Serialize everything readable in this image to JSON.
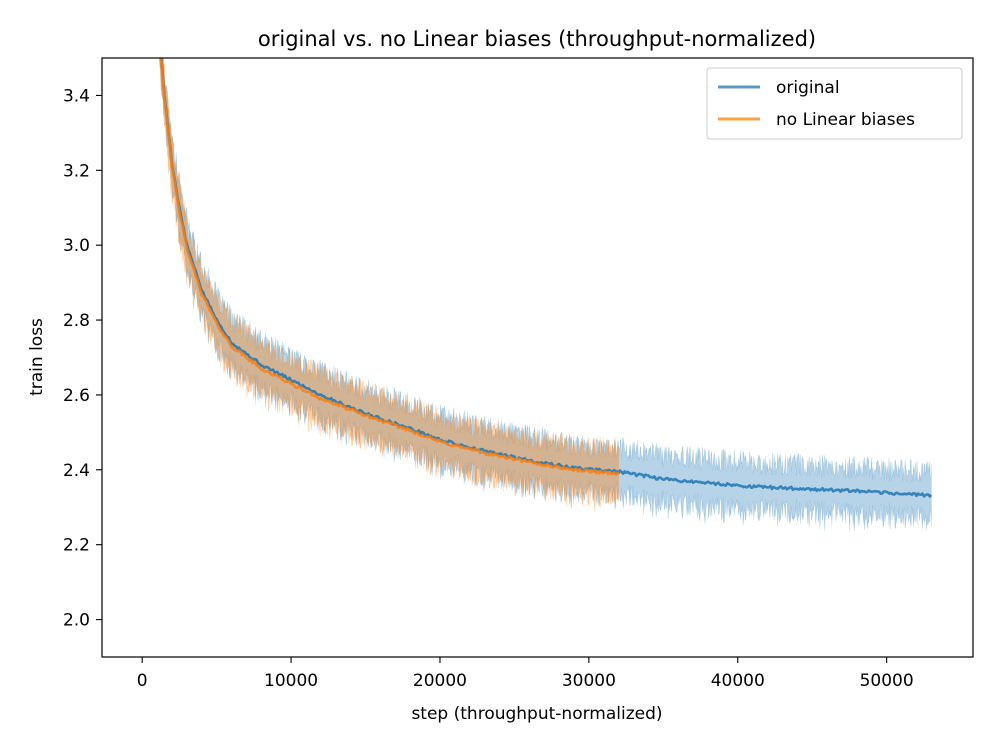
{
  "chart_data": {
    "type": "line",
    "title": "original vs. no Linear biases (throughput-normalized)",
    "xlabel": "step (throughput-normalized)",
    "ylabel": "train loss",
    "xlim": [
      -2700,
      55800
    ],
    "ylim": [
      1.9,
      3.5
    ],
    "x_ticks": [
      0,
      10000,
      20000,
      30000,
      40000,
      50000
    ],
    "y_ticks": [
      2.0,
      2.2,
      2.4,
      2.6,
      2.8,
      3.0,
      3.2,
      3.4
    ],
    "x_tick_labels": [
      "0",
      "10000",
      "20000",
      "30000",
      "40000",
      "50000"
    ],
    "y_tick_labels": [
      "2.0",
      "2.2",
      "2.4",
      "2.6",
      "2.8",
      "3.0",
      "3.2",
      "3.4"
    ],
    "legend_position": "top-right",
    "grid": false,
    "series": [
      {
        "name": "original",
        "color": "#1f77b4",
        "x": [
          1000,
          1500,
          2000,
          2500,
          3000,
          4000,
          5000,
          6000,
          8000,
          10000,
          12000,
          15000,
          18000,
          20000,
          23000,
          26000,
          29000,
          32000,
          35000,
          38000,
          41000,
          44000,
          47000,
          50000,
          53000
        ],
        "y": [
          3.62,
          3.4,
          3.22,
          3.1,
          3.0,
          2.88,
          2.8,
          2.74,
          2.68,
          2.64,
          2.6,
          2.55,
          2.51,
          2.48,
          2.45,
          2.425,
          2.405,
          2.395,
          2.375,
          2.365,
          2.355,
          2.35,
          2.345,
          2.338,
          2.332
        ],
        "band_halfwidth": 0.07
      },
      {
        "name": "no Linear biases",
        "color": "#ff7f0e",
        "x": [
          1000,
          1500,
          2000,
          2500,
          3000,
          4000,
          5000,
          6000,
          8000,
          10000,
          12000,
          15000,
          18000,
          20000,
          23000,
          26000,
          29000,
          32000
        ],
        "y": [
          3.62,
          3.39,
          3.21,
          3.09,
          2.99,
          2.87,
          2.79,
          2.73,
          2.67,
          2.63,
          2.59,
          2.545,
          2.505,
          2.475,
          2.445,
          2.42,
          2.4,
          2.39
        ],
        "band_halfwidth": 0.07
      }
    ]
  }
}
